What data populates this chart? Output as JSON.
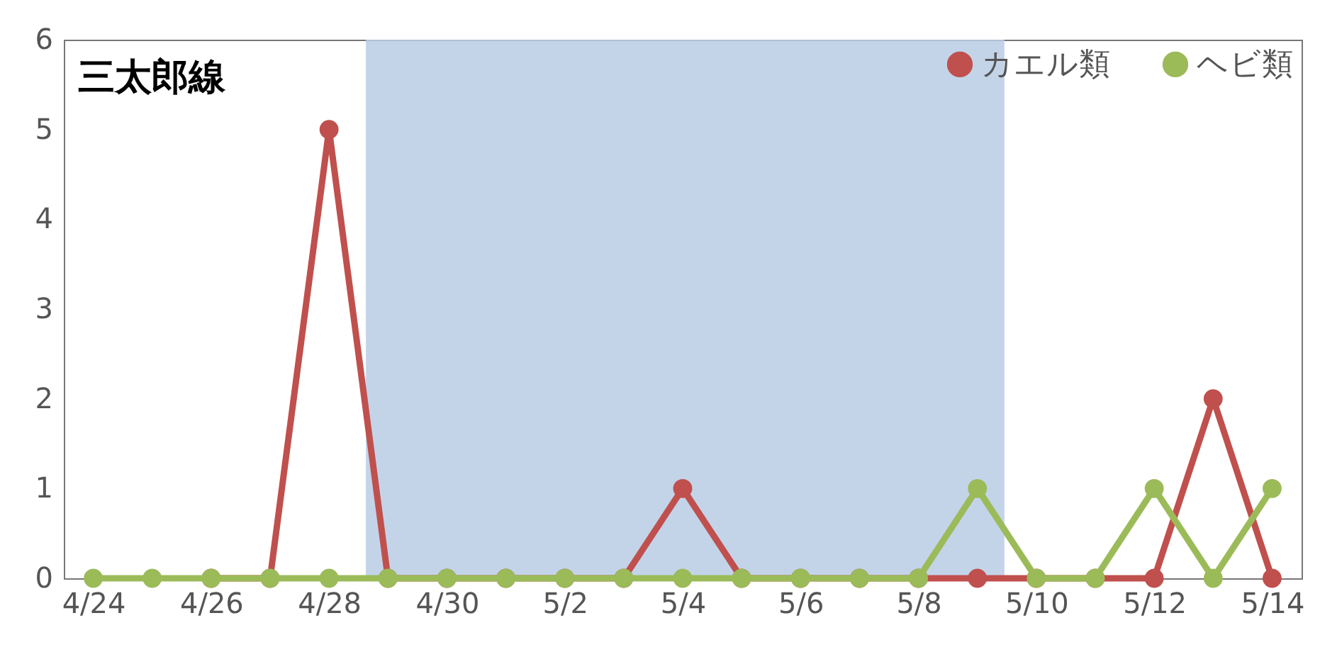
{
  "chart_data": {
    "type": "line",
    "title": "三太郎線",
    "x": [
      "--04-24",
      "--04-25",
      "--04-26",
      "--04-27",
      "--04-28",
      "--04-29",
      "--04-30",
      "--05-01",
      "--05-02",
      "--05-03",
      "--05-04",
      "--05-05",
      "--05-06",
      "--05-07",
      "--05-08",
      "--05-09",
      "--05-10",
      "--05-11",
      "--05-12",
      "--05-13",
      "--05-14"
    ],
    "series": [
      {
        "name": "カエル類",
        "color": "#c0504d",
        "values": [
          null,
          null,
          0,
          0,
          5,
          0,
          0,
          0,
          0,
          0,
          1,
          0,
          0,
          0,
          0,
          0,
          0,
          0,
          0,
          2,
          0
        ]
      },
      {
        "name": "ヘビ類",
        "color": "#9bbb59",
        "values": [
          0,
          0,
          0,
          0,
          0,
          0,
          0,
          0,
          0,
          0,
          0,
          0,
          0,
          0,
          0,
          1,
          0,
          0,
          1,
          0,
          1
        ]
      }
    ],
    "xlim": [
      "--04-23T12:00",
      "--05-14T12:00"
    ],
    "xticks": [
      {
        "value": "--04-24",
        "label": "4/24"
      },
      {
        "value": "--04-26",
        "label": "4/26"
      },
      {
        "value": "--04-28",
        "label": "4/28"
      },
      {
        "value": "--04-30",
        "label": "4/30"
      },
      {
        "value": "--05-02",
        "label": "5/2"
      },
      {
        "value": "--05-04",
        "label": "5/4"
      },
      {
        "value": "--05-06",
        "label": "5/6"
      },
      {
        "value": "--05-08",
        "label": "5/8"
      },
      {
        "value": "--05-10",
        "label": "5/10"
      },
      {
        "value": "--05-12",
        "label": "5/12"
      },
      {
        "value": "--05-14",
        "label": "5/14"
      }
    ],
    "ylim": [
      0,
      6
    ],
    "yticks": [
      0,
      1,
      2,
      3,
      4,
      5,
      6
    ],
    "bands": [
      {
        "axis": "x",
        "from": "--04-28T15:00",
        "to": "--05-09T11:00",
        "color": "#b9cde5"
      }
    ],
    "grid": false,
    "legend": "top right",
    "marker": "circle",
    "line_style": "solid"
  }
}
